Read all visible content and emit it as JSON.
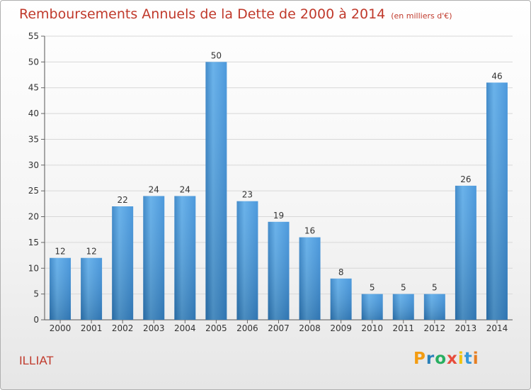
{
  "chart_title": "Remboursements Annuels de la Dette de 2000 à 2014",
  "chart_unit": "(en milliers d'€)",
  "commune": "ILLIAT",
  "logo": {
    "text": "Proxiti",
    "letter_colors": [
      "#f39c12",
      "#2980b9",
      "#27ae60",
      "#e74c3c",
      "#f1c40f",
      "#3498db",
      "#e67e22"
    ]
  },
  "chart_data": {
    "type": "bar",
    "title": "Remboursements Annuels de la Dette de 2000 à 2014",
    "subtitle": "(en milliers d'€)",
    "xlabel": "",
    "ylabel": "",
    "categories": [
      "2000",
      "2001",
      "2002",
      "2003",
      "2004",
      "2005",
      "2006",
      "2007",
      "2008",
      "2009",
      "2010",
      "2011",
      "2012",
      "2013",
      "2014"
    ],
    "values": [
      12,
      12,
      22,
      24,
      24,
      50,
      23,
      19,
      16,
      8,
      5,
      5,
      5,
      26,
      46
    ],
    "ylim": [
      0,
      55
    ],
    "yticks": [
      0,
      5,
      10,
      15,
      20,
      25,
      30,
      35,
      40,
      45,
      50,
      55
    ],
    "grid": true,
    "bar_color": "#3a8ed8"
  }
}
